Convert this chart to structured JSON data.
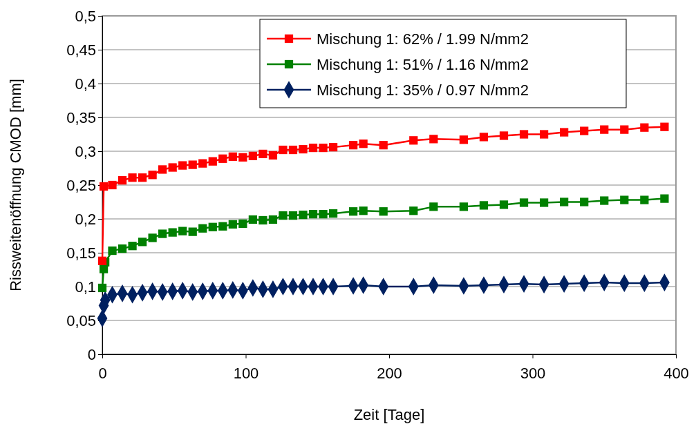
{
  "chart_data": {
    "type": "line",
    "xlabel": "Zeit [Tage]",
    "ylabel": "Rissweitenöffnung CMOD [mm]",
    "xlim": [
      0,
      400
    ],
    "xticks": [
      0,
      100,
      200,
      300,
      400
    ],
    "ylim": [
      0,
      0.5
    ],
    "yticks": [
      0,
      {
        "value": 0.05,
        "label": "0,05"
      },
      {
        "value": 0.1,
        "label": "0,1"
      },
      {
        "value": 0.15,
        "label": "0,15"
      },
      {
        "value": 0.2,
        "label": "0,2"
      },
      {
        "value": 0.25,
        "label": "0,25"
      },
      {
        "value": 0.3,
        "label": "0,3"
      },
      {
        "value": 0.35,
        "label": "0,35"
      },
      {
        "value": 0.4,
        "label": "0,4"
      },
      {
        "value": 0.45,
        "label": "0,45"
      },
      {
        "value": 0.5,
        "label": "0,5"
      }
    ],
    "grid": "y",
    "legend": "top right",
    "line_style": "solid",
    "series": [
      {
        "name": "Mischung 1: 62% / 1.99 N/mm2",
        "color": "#ff0000",
        "marker": "square",
        "x": [
          0,
          1,
          7,
          14,
          21,
          28,
          35,
          42,
          49,
          56,
          63,
          70,
          77,
          84,
          91,
          98,
          105,
          112,
          119,
          126,
          133,
          140,
          147,
          154,
          161,
          175,
          182,
          196,
          217,
          231,
          252,
          266,
          280,
          294,
          308,
          322,
          336,
          350,
          364,
          378,
          392
        ],
        "values": [
          0.138,
          0.248,
          0.25,
          0.257,
          0.261,
          0.261,
          0.265,
          0.273,
          0.276,
          0.279,
          0.28,
          0.282,
          0.285,
          0.289,
          0.292,
          0.291,
          0.293,
          0.296,
          0.294,
          0.302,
          0.302,
          0.303,
          0.305,
          0.305,
          0.306,
          0.309,
          0.311,
          0.309,
          0.316,
          0.318,
          0.317,
          0.321,
          0.323,
          0.325,
          0.325,
          0.328,
          0.33,
          0.332,
          0.332,
          0.335,
          0.336
        ]
      },
      {
        "name": "Mischung 1: 51% / 1.16 N/mm2",
        "color": "#008000",
        "marker": "square",
        "x": [
          0,
          1,
          2,
          7,
          14,
          21,
          28,
          35,
          42,
          49,
          56,
          63,
          70,
          77,
          84,
          91,
          98,
          105,
          112,
          119,
          126,
          133,
          140,
          147,
          154,
          161,
          175,
          182,
          196,
          217,
          231,
          252,
          266,
          280,
          294,
          308,
          322,
          336,
          350,
          364,
          378,
          392
        ],
        "values": [
          0.098,
          0.126,
          0.136,
          0.153,
          0.156,
          0.16,
          0.166,
          0.172,
          0.178,
          0.18,
          0.182,
          0.181,
          0.186,
          0.188,
          0.189,
          0.192,
          0.193,
          0.199,
          0.198,
          0.199,
          0.205,
          0.205,
          0.206,
          0.207,
          0.207,
          0.208,
          0.211,
          0.212,
          0.211,
          0.212,
          0.218,
          0.218,
          0.22,
          0.221,
          0.224,
          0.224,
          0.225,
          0.225,
          0.227,
          0.228,
          0.228,
          0.23
        ]
      },
      {
        "name": "Mischung 1: 35% / 0.97 N/mm2",
        "color": "#002060",
        "marker": "diamond",
        "x": [
          0,
          1,
          2,
          7,
          14,
          21,
          28,
          35,
          42,
          49,
          56,
          63,
          70,
          77,
          84,
          91,
          98,
          105,
          112,
          119,
          126,
          133,
          140,
          147,
          154,
          161,
          175,
          182,
          196,
          217,
          231,
          252,
          266,
          280,
          294,
          308,
          322,
          336,
          350,
          364,
          378,
          392
        ],
        "values": [
          0.053,
          0.072,
          0.08,
          0.088,
          0.09,
          0.088,
          0.091,
          0.093,
          0.092,
          0.093,
          0.094,
          0.092,
          0.093,
          0.094,
          0.094,
          0.095,
          0.094,
          0.098,
          0.096,
          0.096,
          0.1,
          0.1,
          0.1,
          0.1,
          0.1,
          0.1,
          0.101,
          0.102,
          0.1,
          0.1,
          0.102,
          0.101,
          0.102,
          0.103,
          0.104,
          0.103,
          0.104,
          0.105,
          0.106,
          0.105,
          0.105,
          0.106
        ]
      }
    ]
  }
}
